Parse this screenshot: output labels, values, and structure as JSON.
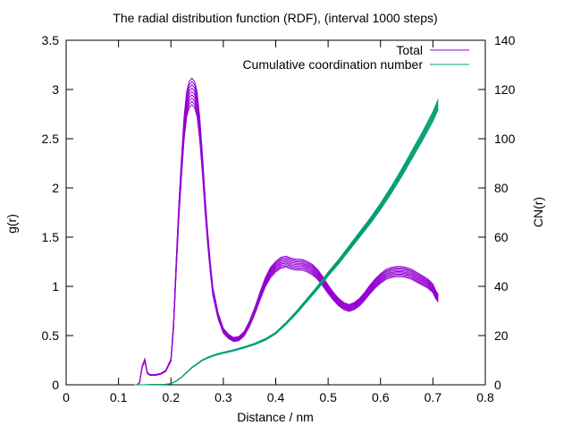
{
  "chart_data": {
    "type": "line",
    "title": "The radial distribution function (RDF), (interval 1000 steps)",
    "xlabel": "Distance / nm",
    "ylabel": "g(r)",
    "y2label": "CN(r)",
    "xlim": [
      0,
      0.8
    ],
    "ylim": [
      0,
      3.5
    ],
    "y2lim": [
      0,
      140
    ],
    "xticks": [
      "0",
      "0.1",
      "0.2",
      "0.3",
      "0.4",
      "0.5",
      "0.6",
      "0.7",
      "0.8"
    ],
    "yticks": [
      "0",
      "0.5",
      "1",
      "1.5",
      "2",
      "2.5",
      "3",
      "3.5"
    ],
    "y2ticks": [
      "0",
      "20",
      "40",
      "60",
      "80",
      "100",
      "120",
      "140"
    ],
    "legend_position": "top-right",
    "grid": false,
    "series": [
      {
        "name": "Total",
        "axis": "left",
        "color": "#9400d3",
        "x": [
          0.135,
          0.14,
          0.145,
          0.15,
          0.155,
          0.16,
          0.17,
          0.18,
          0.19,
          0.2,
          0.205,
          0.21,
          0.215,
          0.22,
          0.225,
          0.23,
          0.235,
          0.24,
          0.245,
          0.25,
          0.255,
          0.26,
          0.265,
          0.27,
          0.275,
          0.28,
          0.29,
          0.3,
          0.31,
          0.32,
          0.33,
          0.34,
          0.35,
          0.36,
          0.37,
          0.38,
          0.39,
          0.4,
          0.41,
          0.42,
          0.43,
          0.44,
          0.45,
          0.46,
          0.47,
          0.48,
          0.49,
          0.5,
          0.51,
          0.52,
          0.53,
          0.54,
          0.55,
          0.56,
          0.57,
          0.58,
          0.59,
          0.6,
          0.61,
          0.62,
          0.63,
          0.64,
          0.65,
          0.66,
          0.67,
          0.68,
          0.69,
          0.7,
          0.705,
          0.71
        ],
        "y": [
          0.0,
          0.02,
          0.18,
          0.25,
          0.12,
          0.1,
          0.1,
          0.11,
          0.14,
          0.25,
          0.6,
          1.2,
          1.75,
          2.2,
          2.6,
          2.85,
          2.95,
          2.98,
          2.95,
          2.85,
          2.6,
          2.25,
          1.85,
          1.5,
          1.2,
          0.95,
          0.7,
          0.55,
          0.49,
          0.46,
          0.47,
          0.52,
          0.62,
          0.75,
          0.9,
          1.04,
          1.14,
          1.2,
          1.24,
          1.25,
          1.23,
          1.22,
          1.22,
          1.2,
          1.17,
          1.12,
          1.05,
          0.97,
          0.9,
          0.84,
          0.8,
          0.78,
          0.8,
          0.84,
          0.9,
          0.97,
          1.03,
          1.08,
          1.12,
          1.14,
          1.15,
          1.15,
          1.14,
          1.12,
          1.09,
          1.06,
          1.03,
          0.98,
          0.92,
          0.88
        ]
      },
      {
        "name": "Cumulative coordination number",
        "axis": "right",
        "color": "#009e73",
        "x": [
          0.13,
          0.15,
          0.17,
          0.19,
          0.2,
          0.21,
          0.22,
          0.23,
          0.24,
          0.25,
          0.26,
          0.27,
          0.28,
          0.29,
          0.3,
          0.32,
          0.34,
          0.36,
          0.38,
          0.4,
          0.42,
          0.44,
          0.46,
          0.48,
          0.5,
          0.52,
          0.54,
          0.56,
          0.58,
          0.6,
          0.62,
          0.64,
          0.66,
          0.68,
          0.7,
          0.71
        ],
        "y": [
          0,
          0,
          0.1,
          0.2,
          0.5,
          1.5,
          3,
          5,
          7,
          8.5,
          10,
          11,
          11.8,
          12.5,
          13,
          14,
          15.2,
          16.6,
          18.4,
          21,
          25,
          29.5,
          34.5,
          39.5,
          45,
          50,
          55.5,
          61,
          66.5,
          72.5,
          79,
          86,
          93.5,
          101,
          109,
          114
        ]
      }
    ]
  }
}
